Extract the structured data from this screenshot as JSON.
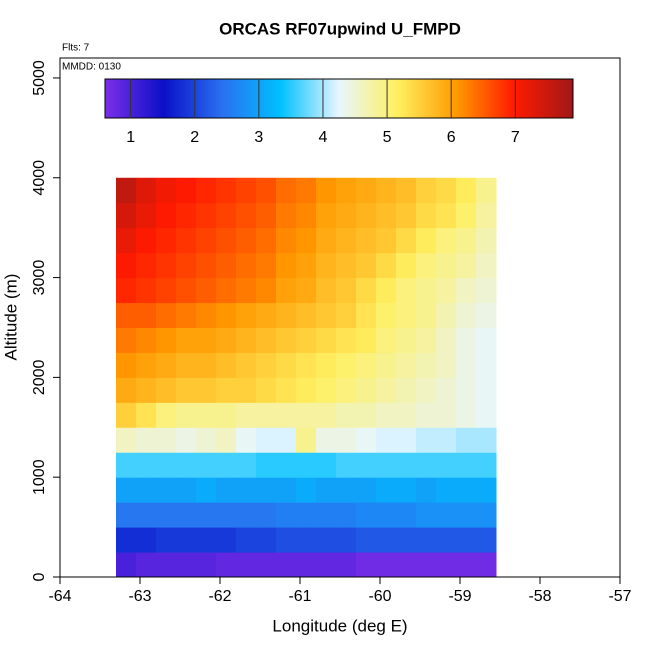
{
  "chart_data": {
    "type": "heatmap",
    "title": "ORCAS RF07upwind U_FMPD",
    "annotations": [
      "Flts: 7",
      "MMDD: 0130"
    ],
    "xlabel": "Longitude (deg E)",
    "ylabel": "Altitude (m)",
    "xlim": [
      -64,
      -57
    ],
    "xticks": [
      -64,
      -63,
      -62,
      -61,
      -60,
      -59,
      -58,
      -57
    ],
    "ylim": [
      0,
      5200
    ],
    "yticks": [
      0,
      1000,
      2000,
      3000,
      4000,
      5000
    ],
    "x_edges": [
      -63.3,
      -63.05,
      -62.8,
      -62.55,
      -62.3,
      -62.05,
      -61.8,
      -61.55,
      -61.3,
      -61.05,
      -60.8,
      -60.55,
      -60.3,
      -60.05,
      -59.8,
      -59.55,
      -59.3,
      -59.05,
      -58.8,
      -58.55
    ],
    "y_edges": [
      0,
      250,
      500,
      750,
      1000,
      1250,
      1500,
      1750,
      2000,
      2250,
      2500,
      2750,
      3000,
      3250,
      3500,
      3750,
      4000
    ],
    "values": [
      [
        1.0,
        0.9,
        0.9,
        0.9,
        0.9,
        0.8,
        0.8,
        0.8,
        0.8,
        0.8,
        0.8,
        0.8,
        0.7,
        0.7,
        0.7,
        0.7,
        0.7,
        0.7,
        0.7
      ],
      [
        1.8,
        1.8,
        1.9,
        1.9,
        1.9,
        1.9,
        2.0,
        2.0,
        2.1,
        2.1,
        2.1,
        2.1,
        2.2,
        2.2,
        2.2,
        2.2,
        2.2,
        2.2,
        2.2
      ],
      [
        2.5,
        2.5,
        2.5,
        2.5,
        2.5,
        2.5,
        2.5,
        2.5,
        2.6,
        2.6,
        2.6,
        2.6,
        2.7,
        2.7,
        2.7,
        2.8,
        2.8,
        2.8,
        2.8
      ],
      [
        3.0,
        3.0,
        3.0,
        3.0,
        3.1,
        3.0,
        3.0,
        3.0,
        3.0,
        3.1,
        3.0,
        3.0,
        3.0,
        3.1,
        3.1,
        3.0,
        3.1,
        3.1,
        3.1
      ],
      [
        3.6,
        3.6,
        3.6,
        3.6,
        3.6,
        3.6,
        3.6,
        3.5,
        3.5,
        3.5,
        3.5,
        3.6,
        3.6,
        3.6,
        3.6,
        3.6,
        3.6,
        3.6,
        3.6
      ],
      [
        4.6,
        4.5,
        4.5,
        4.4,
        4.5,
        4.6,
        4.3,
        4.2,
        4.2,
        4.9,
        4.4,
        4.4,
        4.3,
        4.2,
        4.2,
        4.1,
        4.1,
        4.0,
        4.0
      ],
      [
        5.5,
        5.3,
        5.0,
        4.9,
        4.9,
        4.9,
        4.8,
        4.8,
        4.8,
        4.8,
        4.8,
        4.7,
        4.7,
        4.6,
        4.6,
        4.5,
        4.5,
        4.4,
        4.3
      ],
      [
        5.9,
        5.8,
        5.7,
        5.6,
        5.6,
        5.5,
        5.5,
        5.4,
        5.3,
        5.2,
        5.1,
        5.0,
        4.9,
        4.8,
        4.7,
        4.6,
        4.5,
        4.4,
        4.3
      ],
      [
        6.1,
        6.0,
        5.9,
        5.8,
        5.8,
        5.7,
        5.6,
        5.5,
        5.4,
        5.3,
        5.2,
        5.1,
        5.0,
        4.9,
        4.8,
        4.7,
        4.6,
        4.4,
        4.3
      ],
      [
        6.3,
        6.2,
        6.1,
        6.0,
        6.0,
        5.9,
        5.8,
        5.7,
        5.6,
        5.5,
        5.4,
        5.3,
        5.2,
        5.0,
        4.9,
        4.8,
        4.6,
        4.4,
        4.3
      ],
      [
        6.5,
        6.5,
        6.4,
        6.3,
        6.2,
        6.1,
        6.0,
        5.9,
        5.8,
        5.7,
        5.6,
        5.5,
        5.3,
        5.1,
        5.0,
        4.9,
        4.7,
        4.5,
        4.4
      ],
      [
        6.9,
        6.8,
        6.7,
        6.6,
        6.5,
        6.4,
        6.3,
        6.2,
        6.0,
        5.9,
        5.7,
        5.6,
        5.4,
        5.2,
        5.0,
        4.9,
        4.8,
        4.6,
        4.5
      ],
      [
        7.0,
        6.9,
        6.8,
        6.7,
        6.6,
        6.5,
        6.4,
        6.3,
        6.1,
        6.0,
        5.8,
        5.7,
        5.6,
        5.4,
        5.2,
        5.0,
        4.9,
        4.8,
        4.6
      ],
      [
        7.2,
        7.0,
        6.9,
        6.8,
        6.7,
        6.6,
        6.5,
        6.4,
        6.2,
        6.1,
        5.9,
        5.8,
        5.7,
        5.6,
        5.4,
        5.2,
        5.0,
        4.9,
        4.7
      ],
      [
        7.4,
        7.2,
        7.0,
        6.9,
        6.8,
        6.7,
        6.6,
        6.5,
        6.3,
        6.2,
        6.0,
        5.9,
        5.8,
        5.7,
        5.6,
        5.4,
        5.3,
        5.1,
        4.8
      ],
      [
        7.6,
        7.3,
        7.1,
        7.0,
        6.9,
        6.8,
        6.7,
        6.6,
        6.4,
        6.3,
        6.1,
        6.0,
        5.9,
        5.8,
        5.7,
        5.5,
        5.4,
        5.2,
        4.9
      ]
    ],
    "colorbar_lim": [
      0.6,
      7.9
    ],
    "colorbar_ticks": [
      1,
      2,
      3,
      4,
      5,
      6,
      7
    ],
    "colors": [
      "#7b2fe8",
      "#0a10c8",
      "#2a70f0",
      "#00c0ff",
      "#e8f6ff",
      "#fff060",
      "#ff9a00",
      "#ff1a00",
      "#a01818"
    ]
  }
}
